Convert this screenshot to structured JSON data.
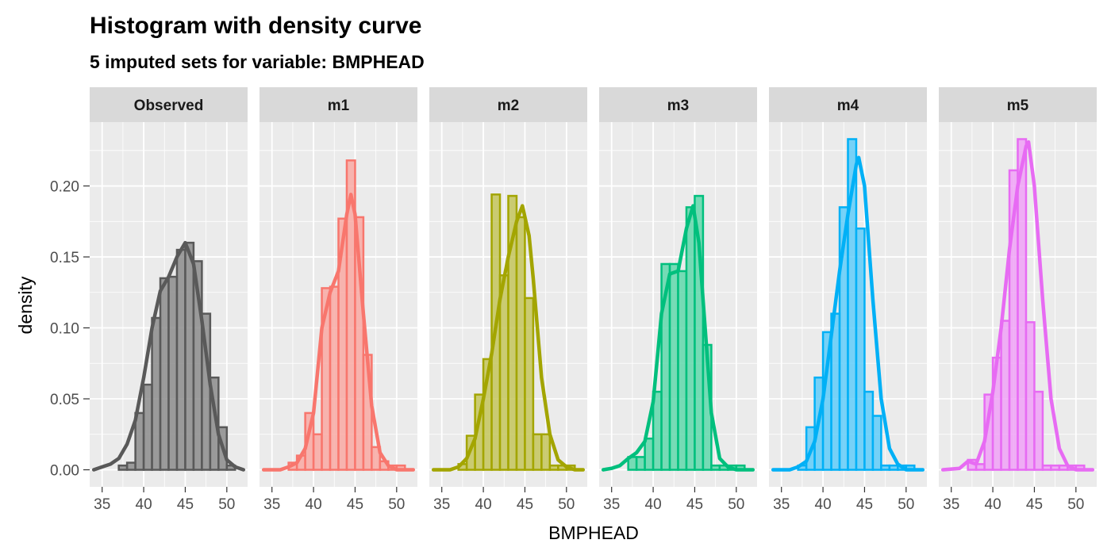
{
  "chart_data": {
    "type": "histogram",
    "title": "Histogram with density curve",
    "subtitle": "5  imputed sets for variable:  BMPHEAD",
    "xlabel": "BMPHEAD",
    "ylabel": "density",
    "xlim": [
      33.5,
      52.5
    ],
    "ylim": [
      -0.012,
      0.245
    ],
    "x_ticks": [
      35,
      40,
      45,
      50
    ],
    "y_ticks": [
      0,
      0.05,
      0.1,
      0.15,
      0.2
    ],
    "y_tick_labels": [
      "0.00",
      "0.05",
      "0.10",
      "0.15",
      "0.20"
    ],
    "grid": true,
    "bin_width": 1,
    "bin_start": 37,
    "panels": [
      {
        "name": "Observed",
        "color": "#595959",
        "fill": "#8c8c8c",
        "densities": [
          0.003,
          0.005,
          0.04,
          0.06,
          0.107,
          0.135,
          0.136,
          0.155,
          0.16,
          0.147,
          0.11,
          0.065,
          0.03,
          0.003
        ],
        "curve": [
          [
            34,
            0.0
          ],
          [
            35,
            0.002
          ],
          [
            36,
            0.004
          ],
          [
            37,
            0.008
          ],
          [
            38,
            0.018
          ],
          [
            39,
            0.035
          ],
          [
            40,
            0.065
          ],
          [
            41,
            0.1
          ],
          [
            42,
            0.126
          ],
          [
            43,
            0.136
          ],
          [
            44,
            0.15
          ],
          [
            45,
            0.16
          ],
          [
            46,
            0.145
          ],
          [
            47,
            0.105
          ],
          [
            48,
            0.06
          ],
          [
            49,
            0.025
          ],
          [
            50,
            0.007
          ],
          [
            51,
            0.002
          ],
          [
            52,
            0.0
          ]
        ]
      },
      {
        "name": "m1",
        "color": "#f8766d",
        "fill": "#f9a9a3",
        "densities": [
          0.005,
          0.01,
          0.04,
          0.025,
          0.128,
          0.129,
          0.177,
          0.218,
          0.178,
          0.081,
          0.016,
          0.006,
          0.003,
          0.003
        ],
        "curve": [
          [
            34,
            0.0
          ],
          [
            36,
            0.0
          ],
          [
            37,
            0.002
          ],
          [
            38,
            0.005
          ],
          [
            39,
            0.015
          ],
          [
            40,
            0.04
          ],
          [
            41,
            0.1
          ],
          [
            42,
            0.125
          ],
          [
            43,
            0.14
          ],
          [
            44,
            0.18
          ],
          [
            44.5,
            0.194
          ],
          [
            45,
            0.18
          ],
          [
            46,
            0.11
          ],
          [
            47,
            0.045
          ],
          [
            48,
            0.012
          ],
          [
            49,
            0.003
          ],
          [
            50,
            0.0
          ],
          [
            51,
            0.0
          ],
          [
            52,
            0.0
          ]
        ]
      },
      {
        "name": "m2",
        "color": "#a3a500",
        "fill": "#c4c55c",
        "densities": [
          0.004,
          0.024,
          0.053,
          0.078,
          0.194,
          0.137,
          0.193,
          0.178,
          0.121,
          0.025,
          0.025,
          0.003,
          0.003,
          0.003
        ],
        "curve": [
          [
            34,
            0.0
          ],
          [
            36,
            0.0
          ],
          [
            37,
            0.002
          ],
          [
            38,
            0.008
          ],
          [
            39,
            0.022
          ],
          [
            40,
            0.05
          ],
          [
            41,
            0.082
          ],
          [
            42,
            0.12
          ],
          [
            43,
            0.15
          ],
          [
            44,
            0.175
          ],
          [
            44.7,
            0.186
          ],
          [
            45.5,
            0.165
          ],
          [
            46,
            0.135
          ],
          [
            47,
            0.065
          ],
          [
            48,
            0.025
          ],
          [
            49,
            0.007
          ],
          [
            50,
            0.002
          ],
          [
            51,
            0.0
          ],
          [
            52,
            0.0
          ]
        ]
      },
      {
        "name": "m3",
        "color": "#00bf7d",
        "fill": "#60d8ab",
        "densities": [
          0.009,
          0.009,
          0.022,
          0.055,
          0.145,
          0.145,
          0.14,
          0.185,
          0.193,
          0.088,
          0.003,
          0.003,
          0.003,
          0.003
        ],
        "curve": [
          [
            34,
            0.0
          ],
          [
            35,
            0.001
          ],
          [
            36,
            0.003
          ],
          [
            37,
            0.008
          ],
          [
            38,
            0.012
          ],
          [
            39,
            0.02
          ],
          [
            40,
            0.048
          ],
          [
            41,
            0.11
          ],
          [
            42,
            0.138
          ],
          [
            43,
            0.14
          ],
          [
            44,
            0.17
          ],
          [
            44.8,
            0.186
          ],
          [
            45.5,
            0.16
          ],
          [
            46,
            0.12
          ],
          [
            47,
            0.04
          ],
          [
            48,
            0.008
          ],
          [
            49,
            0.002
          ],
          [
            50,
            0.0
          ],
          [
            51,
            0.0
          ],
          [
            52,
            0.0
          ]
        ]
      },
      {
        "name": "m4",
        "color": "#00b0f6",
        "fill": "#60ccf9",
        "densities": [
          0.003,
          0.03,
          0.065,
          0.097,
          0.11,
          0.185,
          0.233,
          0.17,
          0.055,
          0.038,
          0.003,
          0.003,
          0.003,
          0.003
        ],
        "curve": [
          [
            34,
            0.0
          ],
          [
            36,
            0.0
          ],
          [
            37,
            0.002
          ],
          [
            38,
            0.006
          ],
          [
            39,
            0.02
          ],
          [
            40,
            0.05
          ],
          [
            41,
            0.095
          ],
          [
            42,
            0.14
          ],
          [
            43,
            0.18
          ],
          [
            44,
            0.215
          ],
          [
            44.3,
            0.22
          ],
          [
            45,
            0.2
          ],
          [
            46,
            0.12
          ],
          [
            47,
            0.05
          ],
          [
            48,
            0.015
          ],
          [
            49,
            0.004
          ],
          [
            50,
            0.0
          ],
          [
            51,
            0.0
          ],
          [
            52,
            0.0
          ]
        ]
      },
      {
        "name": "m5",
        "color": "#e76bf3",
        "fill": "#f0a2f7",
        "densities": [
          0.007,
          0.004,
          0.053,
          0.079,
          0.105,
          0.211,
          0.233,
          0.104,
          0.055,
          0.003,
          0.003,
          0.003,
          0.003,
          0.003
        ],
        "curve": [
          [
            34,
            0.0
          ],
          [
            36,
            0.001
          ],
          [
            37,
            0.006
          ],
          [
            38,
            0.004
          ],
          [
            39,
            0.02
          ],
          [
            40,
            0.055
          ],
          [
            41,
            0.1
          ],
          [
            42,
            0.155
          ],
          [
            43,
            0.2
          ],
          [
            44,
            0.228
          ],
          [
            44.3,
            0.231
          ],
          [
            45,
            0.2
          ],
          [
            46,
            0.12
          ],
          [
            47,
            0.05
          ],
          [
            48,
            0.015
          ],
          [
            49,
            0.003
          ],
          [
            50,
            0.0
          ],
          [
            51,
            0.0
          ],
          [
            52,
            0.0
          ]
        ]
      }
    ]
  }
}
